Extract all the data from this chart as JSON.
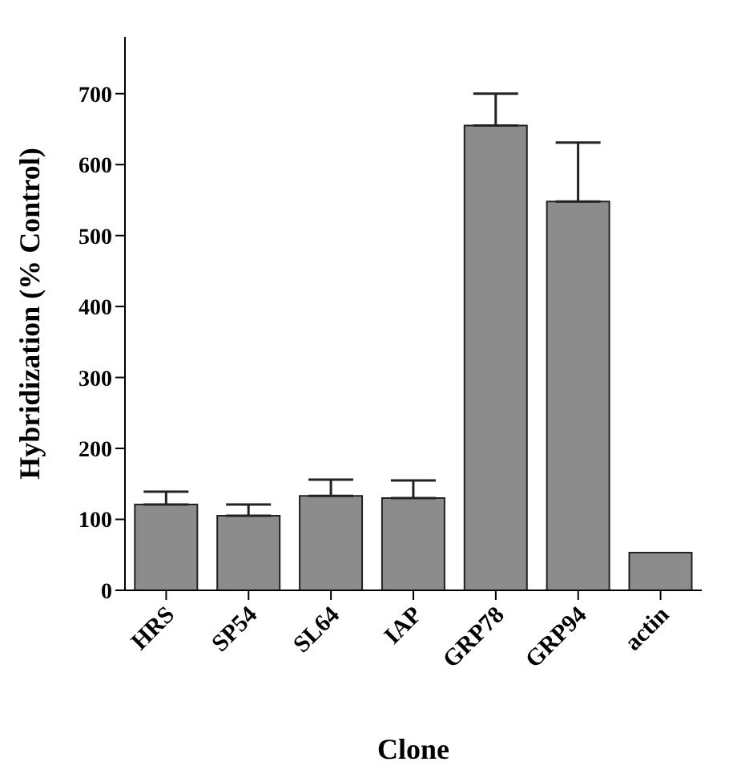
{
  "chart_data": {
    "type": "bar",
    "xlabel": "Clone",
    "ylabel": "Hybridization (% Control)",
    "categories": [
      "HRS",
      "SP54",
      "SL64",
      "IAP",
      "GRP78",
      "GRP94",
      "actin"
    ],
    "values": [
      121,
      105,
      133,
      130,
      655,
      548,
      53
    ],
    "errors": [
      [
        121,
        139
      ],
      [
        105,
        121
      ],
      [
        133,
        156
      ],
      [
        130,
        155
      ],
      [
        655,
        700
      ],
      [
        548,
        631
      ],
      null
    ],
    "color": "#8c8c8c",
    "ylim": [
      0,
      780
    ],
    "yticks": [
      0,
      100,
      200,
      300,
      400,
      500,
      600,
      700
    ],
    "grid": false,
    "legend": false
  }
}
